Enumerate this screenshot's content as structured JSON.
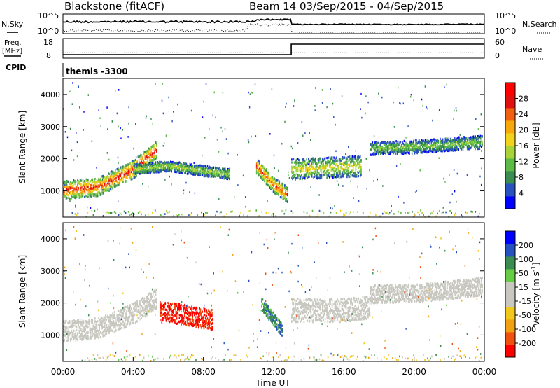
{
  "header": {
    "station": "Blackstone (fitACF)",
    "beam_and_dates": "Beam 14  03/Sep/2015 - 04/Sep/2015"
  },
  "noise_panel": {
    "left_label": "N.Sky",
    "right_label": "N.Search",
    "left_ticks": [
      "10^5",
      "10^0"
    ],
    "right_ticks": [
      "10^5",
      "10^0"
    ]
  },
  "freq_panel": {
    "left_label_line1": "Freq.",
    "left_label_line2": "[MHz]",
    "right_label": "Nave",
    "left_ticks": [
      "18",
      "8"
    ],
    "right_ticks": [
      "60",
      "0"
    ],
    "freq_step_time_hours": 13.0,
    "freq_before_mhz": 10.5,
    "freq_after_mhz": 18,
    "nave_value": 23
  },
  "cpid": {
    "label": "CPID",
    "program": "themis -3300"
  },
  "colors": {
    "power_scale": [
      "#0000ff",
      "#2a52be",
      "#3a8c50",
      "#5cba46",
      "#a8d43a",
      "#f2d21a",
      "#f7a80c",
      "#f06010",
      "#e01010",
      "#ff0000"
    ],
    "velocity_scale": [
      "#0000ff",
      "#2552bf",
      "#3a8c50",
      "#66cc44",
      "#c8c8c0",
      "#c8c8c0",
      "#f2c81a",
      "#f0a010",
      "#f05010",
      "#ff0000"
    ],
    "ground_scatter": "#c8c8c0"
  },
  "chart_data": [
    {
      "type": "heatmap",
      "name": "power",
      "ylabel": "Slant Range [km]",
      "xlabel": "",
      "ylim": [
        180,
        4500
      ],
      "yticks": [
        1000,
        2000,
        3000,
        4000
      ],
      "colorbar_label": "Power [dB]",
      "colorbar_ticks": [
        "4",
        "8",
        "12",
        "16",
        "20",
        "24",
        "28"
      ],
      "colorbar_range": [
        0,
        30
      ],
      "bands": [
        {
          "t": [
            0.0,
            2.0,
            4.0,
            5.3
          ],
          "range_center_km": [
            1050,
            1150,
            1700,
            2300
          ],
          "width_km": 350,
          "power_db": 26
        },
        {
          "t": [
            4.0,
            6.0,
            8.0,
            9.5
          ],
          "range_center_km": [
            1700,
            1800,
            1650,
            1550
          ],
          "width_km": 200,
          "power_db": 14
        },
        {
          "t": [
            11.0,
            12.0,
            12.8
          ],
          "range_center_km": [
            1800,
            1200,
            900
          ],
          "width_km": 300,
          "power_db": 24
        },
        {
          "t": [
            13.0,
            15.0,
            17.0
          ],
          "range_center_km": [
            1700,
            1750,
            1800
          ],
          "width_km": 400,
          "power_db": 16
        },
        {
          "t": [
            17.5,
            20.0,
            23.9
          ],
          "range_center_km": [
            2350,
            2400,
            2550
          ],
          "width_km": 250,
          "power_db": 12
        }
      ]
    },
    {
      "type": "heatmap",
      "name": "velocity",
      "ylabel": "Slant Range [km]",
      "xlabel": "Time UT",
      "ylim": [
        180,
        4500
      ],
      "yticks": [
        1000,
        2000,
        3000,
        4000
      ],
      "xticks": [
        "00:00",
        "04:00",
        "08:00",
        "12:00",
        "16:00",
        "20:00",
        "00:00"
      ],
      "xlim_hours": [
        0,
        24
      ],
      "colorbar_label": "Velocity [m s^-1]",
      "colorbar_ticks": [
        "200",
        "100",
        "50",
        "15",
        "-15",
        "-50",
        "-100",
        "-200"
      ],
      "bands": [
        {
          "t": [
            0.0,
            2.0,
            4.0,
            5.3
          ],
          "range_center_km": [
            1150,
            1250,
            1700,
            2150
          ],
          "width_km": 400,
          "velocity": 0,
          "ground_scatter": true
        },
        {
          "t": [
            5.5,
            6.5,
            8.5
          ],
          "range_center_km": [
            1750,
            1700,
            1500
          ],
          "width_km": 400,
          "velocity": -160
        },
        {
          "t": [
            11.3,
            12.5
          ],
          "range_center_km": [
            2000,
            1150
          ],
          "width_km": 250,
          "velocity": 60
        },
        {
          "t": [
            13.0,
            16.0,
            17.5
          ],
          "range_center_km": [
            1800,
            1800,
            1900
          ],
          "width_km": 450,
          "velocity": 0,
          "ground_scatter": true
        },
        {
          "t": [
            17.5,
            20.5,
            23.9
          ],
          "range_center_km": [
            2300,
            2350,
            2550
          ],
          "width_km": 350,
          "velocity": 0,
          "ground_scatter": true
        }
      ]
    }
  ]
}
